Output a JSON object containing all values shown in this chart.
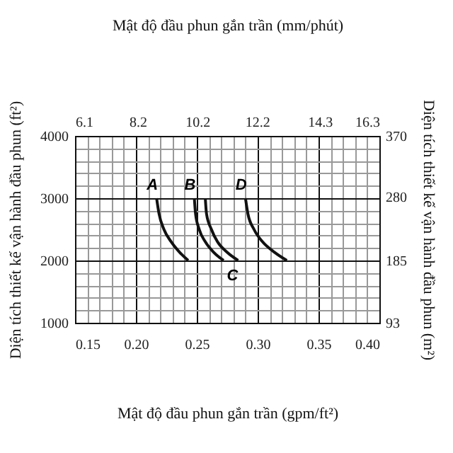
{
  "chart_data": {
    "type": "line",
    "xlabel": "Mật độ đầu phun gắn trần (gpm/ft²)",
    "ylabel": "Diện tích thiết kế vận hành đầu phun (ft²)",
    "x2label": "Mật độ đầu phun gắn trần (mm/phút)",
    "y2label": "Diện tích thiết kế vận hành đầu phun (m²)",
    "xlim": [
      0.15,
      0.4
    ],
    "xticks": [
      0.15,
      {
        "value": 0.16,
        "label": null
      },
      {
        "value": 0.17,
        "label": null
      },
      {
        "value": 0.18,
        "label": null
      },
      {
        "value": 0.19,
        "label": null
      },
      {
        "value": 0.2,
        "label": "0.20"
      },
      {
        "value": 0.21,
        "label": null
      },
      {
        "value": 0.22,
        "label": null
      },
      {
        "value": 0.23,
        "label": null
      },
      {
        "value": 0.24,
        "label": null
      },
      0.25,
      {
        "value": 0.26,
        "label": null
      },
      {
        "value": 0.27,
        "label": null
      },
      {
        "value": 0.28,
        "label": null
      },
      {
        "value": 0.29,
        "label": null
      },
      {
        "value": 0.3,
        "label": "0.30"
      },
      {
        "value": 0.31,
        "label": null
      },
      {
        "value": 0.32,
        "label": null
      },
      {
        "value": 0.33,
        "label": null
      },
      {
        "value": 0.34,
        "label": null
      },
      0.35,
      {
        "value": 0.36,
        "label": null
      },
      {
        "value": 0.37,
        "label": null
      },
      {
        "value": 0.38,
        "label": null
      },
      {
        "value": 0.39,
        "label": null
      },
      {
        "value": 0.4,
        "label": "0.40"
      }
    ],
    "ylim": [
      1000,
      4000
    ],
    "yticks": [
      1000,
      {
        "value": 1200,
        "label": null
      },
      {
        "value": 1400,
        "label": null
      },
      {
        "value": 1600,
        "label": null
      },
      {
        "value": 1800,
        "label": null
      },
      2000,
      {
        "value": 2200,
        "label": null
      },
      {
        "value": 2400,
        "label": null
      },
      {
        "value": 2600,
        "label": null
      },
      {
        "value": 2800,
        "label": null
      },
      3000,
      {
        "value": 3200,
        "label": null
      },
      {
        "value": 3400,
        "label": null
      },
      {
        "value": 3600,
        "label": null
      },
      {
        "value": 3800,
        "label": null
      },
      4000
    ],
    "x2lim": [
      6.1,
      16.3
    ],
    "x2ticks": [
      6.1,
      8.2,
      10.2,
      12.2,
      14.3,
      16.3
    ],
    "y2lim": [
      93,
      370
    ],
    "y2ticks": [
      93,
      185,
      280,
      370
    ],
    "grid": true,
    "line_style": "solid",
    "series": [
      {
        "color": "#111111",
        "x": [
          0.217,
          0.219,
          0.223,
          0.229,
          0.236,
          0.243
        ],
        "values": [
          3000,
          2750,
          2500,
          2300,
          2130,
          2000
        ]
      },
      {
        "color": "#111111",
        "x": [
          0.248,
          0.249,
          0.252,
          0.257,
          0.264,
          0.272
        ],
        "values": [
          3000,
          2750,
          2500,
          2300,
          2130,
          2000
        ]
      },
      {
        "color": "#111111",
        "x": [
          0.257,
          0.258,
          0.262,
          0.267,
          0.275,
          0.284
        ],
        "values": [
          3000,
          2750,
          2500,
          2300,
          2130,
          2000
        ]
      },
      {
        "color": "#111111",
        "x": [
          0.29,
          0.292,
          0.297,
          0.304,
          0.314,
          0.324
        ],
        "values": [
          3000,
          2750,
          2500,
          2300,
          2130,
          2000
        ]
      }
    ],
    "annotations": [
      {
        "text": "A",
        "x": 0.217,
        "y": 3000
      },
      {
        "text": "B",
        "x": 0.248,
        "y": 3000
      },
      {
        "text": "C",
        "x": 0.284,
        "y": 2000
      },
      {
        "text": "D",
        "x": 0.29,
        "y": 3000
      }
    ]
  }
}
